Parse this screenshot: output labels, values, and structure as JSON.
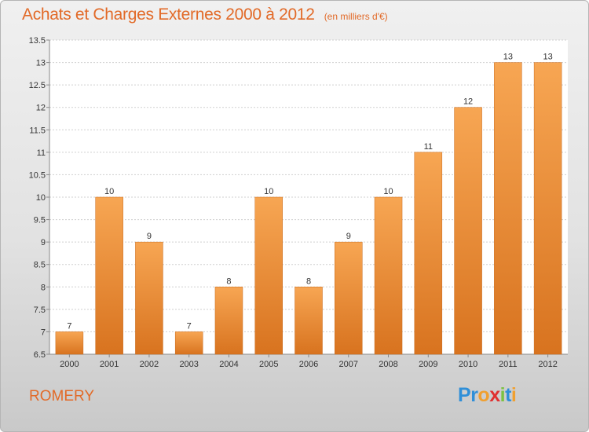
{
  "chart_data": {
    "type": "bar",
    "title": "Achats et Charges Externes 2000 à 2012",
    "subtitle": "(en milliers d'€)",
    "categories": [
      "2000",
      "2001",
      "2002",
      "2003",
      "2004",
      "2005",
      "2006",
      "2007",
      "2008",
      "2009",
      "2010",
      "2011",
      "2012"
    ],
    "values": [
      7,
      10,
      9,
      7,
      8,
      10,
      8,
      9,
      10,
      11,
      12,
      13,
      13
    ],
    "ylim": [
      6.5,
      13.5
    ],
    "yticks": [
      6.5,
      7,
      7.5,
      8,
      8.5,
      9,
      9.5,
      10,
      10.5,
      11,
      11.5,
      12,
      12.5,
      13,
      13.5
    ],
    "grid": true,
    "bar_color": "#f0913a"
  },
  "footer": {
    "commune": "ROMERY",
    "logo_text": "Proxiti",
    "logo_colors": [
      "#2f8fd8",
      "#2f8fd8",
      "#f0a030",
      "#e03030",
      "#7cc242",
      "#2f8fd8",
      "#f0a030"
    ]
  }
}
